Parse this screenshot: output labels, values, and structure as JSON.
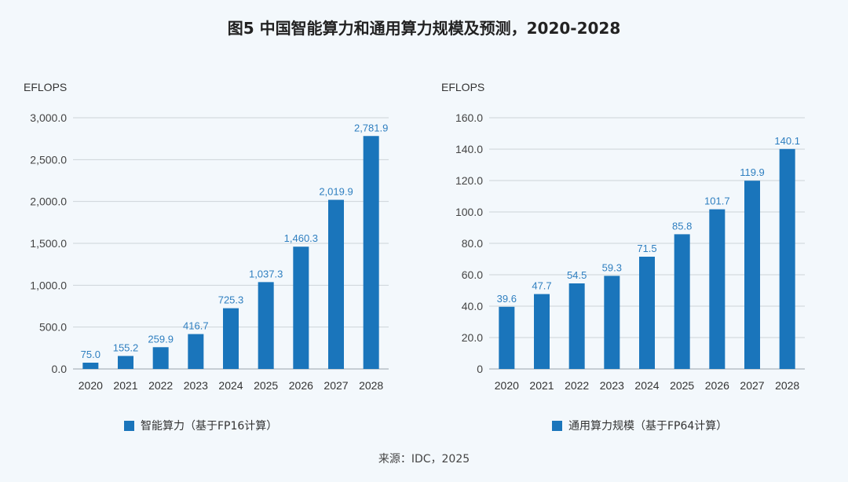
{
  "title": "图5 中国智能算力和通用算力规模及预测，2020-2028",
  "source": "来源：IDC，2025",
  "bar_color": "#1a75bb",
  "label_color": "#2f7fc0",
  "chart_data": [
    {
      "type": "bar",
      "unit_label": "EFLOPS",
      "legend": "智能算力（基于FP16计算）",
      "categories": [
        "2020",
        "2021",
        "2022",
        "2023",
        "2024",
        "2025",
        "2026",
        "2027",
        "2028"
      ],
      "values": [
        75.0,
        155.2,
        259.9,
        416.7,
        725.3,
        1037.3,
        1460.3,
        2019.9,
        2781.9
      ],
      "value_labels": [
        "75.0",
        "155.2",
        "259.9",
        "416.7",
        "725.3",
        "1,037.3",
        "1,460.3",
        "2,019.9",
        "2,781.9"
      ],
      "ylim": [
        0,
        3000
      ],
      "yticks": [
        0,
        500,
        1000,
        1500,
        2000,
        2500,
        3000
      ],
      "ytick_labels": [
        "0.0",
        "500.0",
        "1,000.0",
        "1,500.0",
        "2,000.0",
        "2,500.0",
        "3,000.0"
      ],
      "grid": true
    },
    {
      "type": "bar",
      "unit_label": "EFLOPS",
      "legend": "通用算力规模（基于FP64计算）",
      "categories": [
        "2020",
        "2021",
        "2022",
        "2023",
        "2024",
        "2025",
        "2026",
        "2027",
        "2028"
      ],
      "values": [
        39.6,
        47.7,
        54.5,
        59.3,
        71.5,
        85.8,
        101.7,
        119.9,
        140.1
      ],
      "value_labels": [
        "39.6",
        "47.7",
        "54.5",
        "59.3",
        "71.5",
        "85.8",
        "101.7",
        "119.9",
        "140.1"
      ],
      "ylim": [
        0,
        160
      ],
      "yticks": [
        0,
        20,
        40,
        60,
        80,
        100,
        120,
        140,
        160
      ],
      "ytick_labels": [
        "0",
        "20.0",
        "40.0",
        "60.0",
        "80.0",
        "100.0",
        "120.0",
        "140.0",
        "160.0"
      ],
      "grid": true
    }
  ]
}
